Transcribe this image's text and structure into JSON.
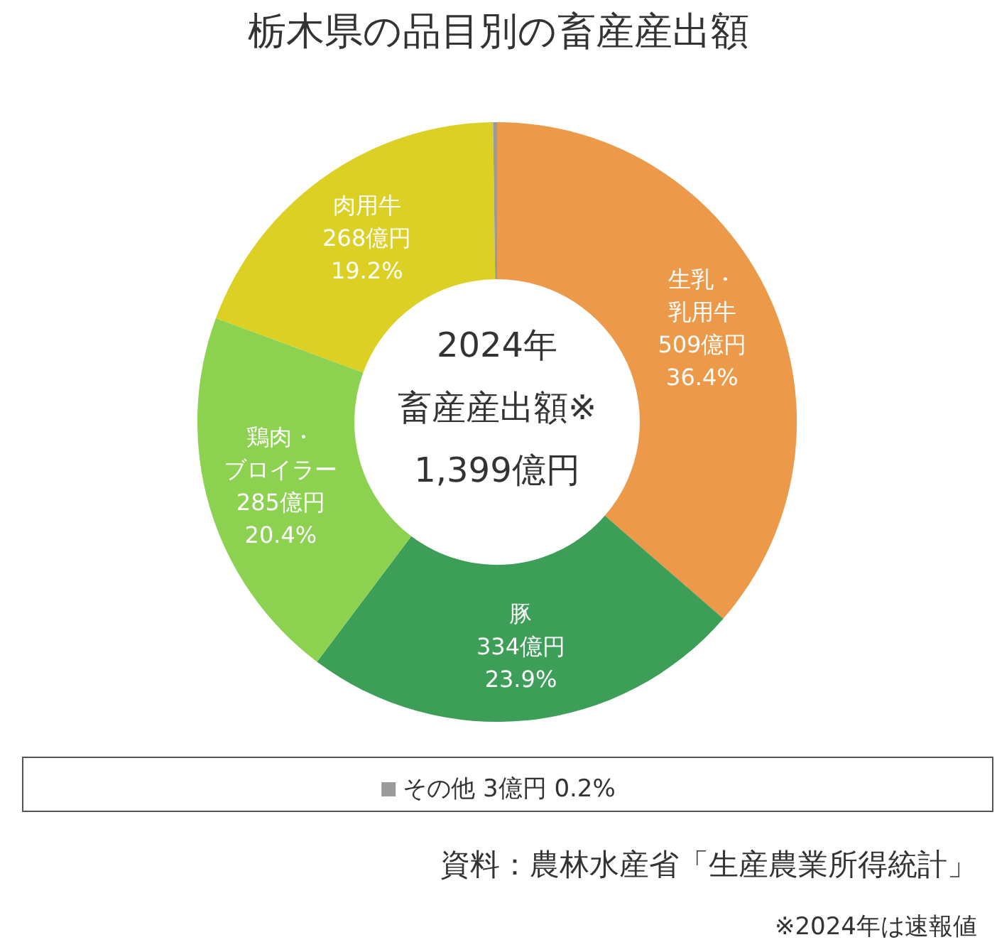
{
  "chart_data": {
    "type": "donut",
    "title": "栃木県の品目別の畜産産出額",
    "categories": [
      "生乳・乳用牛",
      "豚",
      "鶏肉・ブロイラー",
      "肉用牛",
      "その他"
    ],
    "values": [
      509,
      334,
      285,
      268,
      3
    ],
    "colors": [
      "#ec9a4a",
      "#3d9e57",
      "#8cd150",
      "#ddd024",
      "#9a9a9a"
    ],
    "value_labels": [
      "509億円\n36.4%",
      "334億円\n23.9%",
      "285億円\n20.4%",
      "268億円\n19.2%",
      "3億円 0.2%"
    ],
    "legend": "bottom",
    "annotations": [
      "2024年",
      "畜産産出額※",
      "1,399億円",
      "資料：農林水産省「生産農業所得統計」",
      "※2024年は速報値"
    ]
  }
}
